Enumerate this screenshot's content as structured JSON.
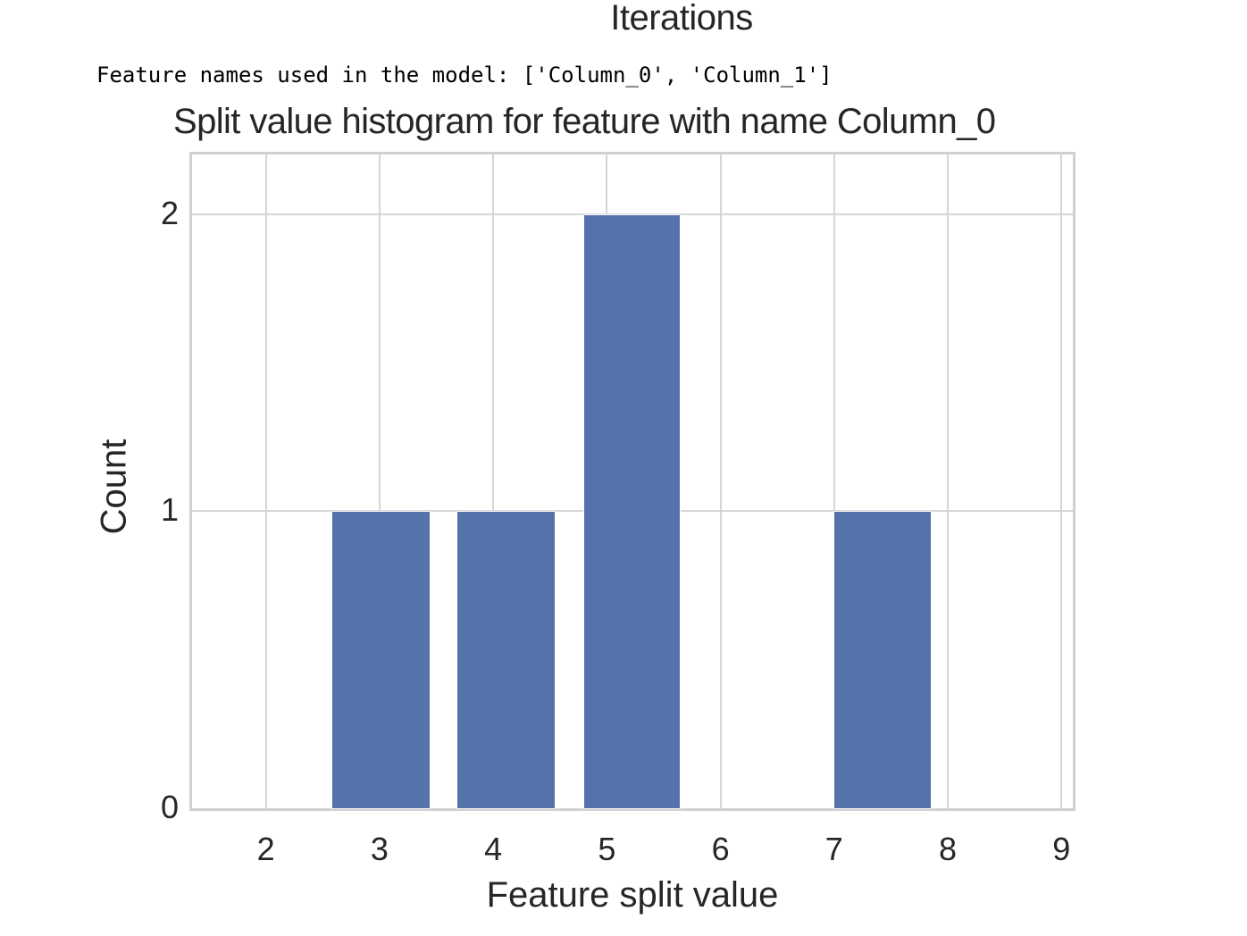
{
  "previous_output": {
    "xlabel": "Iterations"
  },
  "stdout": {
    "text": "Feature names used in the model: ['Column_0', 'Column_1']"
  },
  "colors": {
    "bar": "#5572aa",
    "grid": "#d6d6d6",
    "frame": "#d0d0d0",
    "text": "#262626"
  },
  "chart_data": {
    "type": "bar",
    "title": "Split value histogram for feature with name Column_0",
    "xlabel": "Feature split value",
    "ylabel": "Count",
    "x_ticks": [
      2,
      3,
      4,
      5,
      6,
      7,
      8,
      9
    ],
    "x_tick_labels": [
      "2",
      "3",
      "4",
      "5",
      "6",
      "7",
      "8",
      "9"
    ],
    "y_ticks": [
      0,
      1,
      2
    ],
    "y_tick_labels": [
      "0",
      "1",
      "2"
    ],
    "xlim": [
      1.35,
      9.1
    ],
    "ylim": [
      0,
      2.2
    ],
    "grid": true,
    "legend": null,
    "bins": [
      {
        "left": 2.58,
        "right": 3.45,
        "count": 1
      },
      {
        "left": 3.68,
        "right": 4.55,
        "count": 1
      },
      {
        "left": 4.79,
        "right": 5.65,
        "count": 2
      },
      {
        "left": 6.99,
        "right": 7.86,
        "count": 1
      }
    ],
    "categories": [
      "~3.0",
      "~4.1",
      "~5.2",
      "~7.4"
    ],
    "values": [
      1,
      1,
      2,
      1
    ]
  }
}
